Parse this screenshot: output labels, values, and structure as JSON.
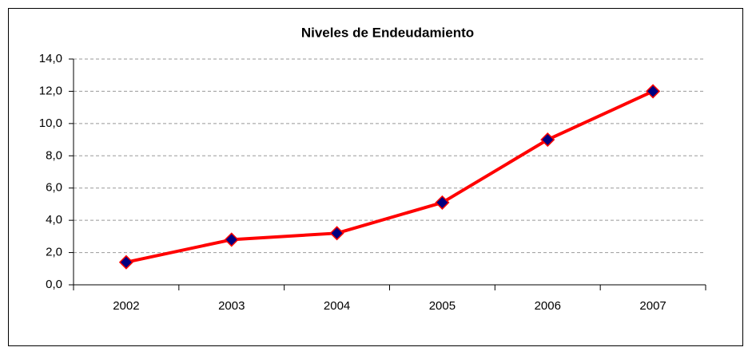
{
  "chart_data": {
    "type": "line",
    "title": "Niveles de Endeudamiento",
    "categories": [
      "2002",
      "2003",
      "2004",
      "2005",
      "2006",
      "2007"
    ],
    "series": [
      {
        "name": "Niveles de Endeudamiento",
        "color": "#ff0000",
        "marker_color": "#000080",
        "values": [
          1.4,
          2.8,
          3.2,
          5.1,
          9.0,
          12.0
        ]
      }
    ],
    "ylim": [
      0,
      14
    ],
    "yticks": [
      {
        "value": 0,
        "label": "0,0"
      },
      {
        "value": 2,
        "label": "2,0"
      },
      {
        "value": 4,
        "label": "4,0"
      },
      {
        "value": 6,
        "label": "6,0"
      },
      {
        "value": 8,
        "label": "8,0"
      },
      {
        "value": 10,
        "label": "10,0"
      },
      {
        "value": 12,
        "label": "12,0"
      },
      {
        "value": 14,
        "label": "14,0"
      }
    ],
    "grid": true
  }
}
